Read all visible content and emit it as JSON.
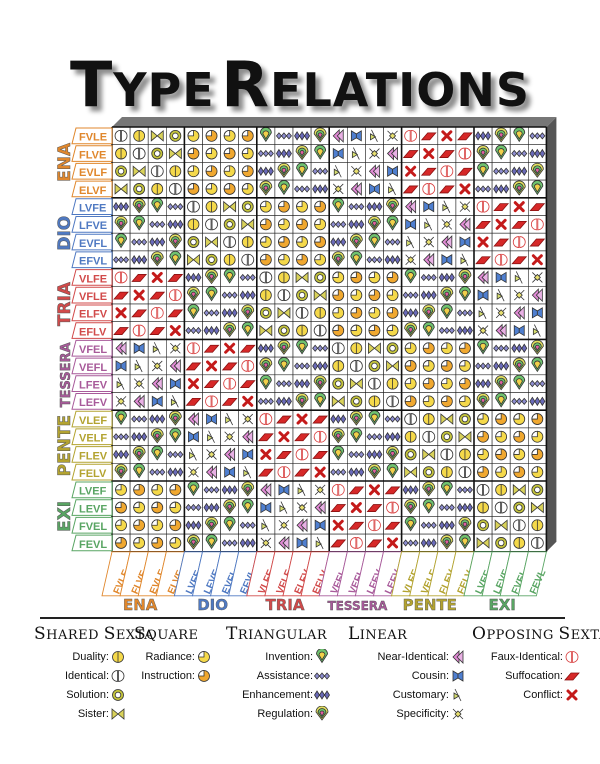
{
  "title": {
    "first": "Type",
    "second": "Relations"
  },
  "groups": [
    {
      "name": "ENA",
      "color": "#e0872c",
      "types": [
        "FVLE",
        "FLVE",
        "EVLF",
        "ELVF"
      ]
    },
    {
      "name": "DIO",
      "color": "#4f79c2",
      "types": [
        "LVFE",
        "LFVE",
        "EVFL",
        "EFVL"
      ]
    },
    {
      "name": "TRIA",
      "color": "#d14a4a",
      "types": [
        "VLFE",
        "VFLE",
        "ELFV",
        "EFLV"
      ]
    },
    {
      "name": "TESSERA",
      "color": "#a85a9a",
      "types": [
        "VFEL",
        "VEFL",
        "LFEV",
        "LEFV"
      ]
    },
    {
      "name": "PENTE",
      "color": "#b3a330",
      "types": [
        "VLEF",
        "VELF",
        "FLEV",
        "FELV"
      ]
    },
    {
      "name": "EXI",
      "color": "#59a563",
      "types": [
        "LVEF",
        "LEVF",
        "FVEL",
        "FEVL"
      ]
    }
  ],
  "legend": [
    {
      "heading": "Shared Sexta",
      "items": [
        {
          "label": "Duality:",
          "icon": "duality"
        },
        {
          "label": "Identical:",
          "icon": "identical"
        },
        {
          "label": "Solution:",
          "icon": "solution"
        },
        {
          "label": "Sister:",
          "icon": "sister"
        }
      ]
    },
    {
      "heading": "Square",
      "items": [
        {
          "label": "Radiance:",
          "icon": "radiance"
        },
        {
          "label": "Instruction:",
          "icon": "instruction"
        }
      ]
    },
    {
      "heading": "Triangular",
      "items": [
        {
          "label": "Invention:",
          "icon": "invention"
        },
        {
          "label": "Assistance:",
          "icon": "assistance"
        },
        {
          "label": "Enhancement:",
          "icon": "enhancement"
        },
        {
          "label": "Regulation:",
          "icon": "regulation"
        }
      ]
    },
    {
      "heading": "Linear",
      "items": [
        {
          "label": "Near-Identical:",
          "icon": "near-identical"
        },
        {
          "label": "Cousin:",
          "icon": "cousin"
        },
        {
          "label": "Customary:",
          "icon": "customary"
        },
        {
          "label": "Specificity:",
          "icon": "specificity"
        }
      ]
    },
    {
      "heading": "Opposing Sexta",
      "items": [
        {
          "label": "Faux-Identical:",
          "icon": "faux-identical"
        },
        {
          "label": "Suffocation:",
          "icon": "suffocation"
        },
        {
          "label": "Conflict:",
          "icon": "conflict"
        }
      ]
    }
  ]
}
